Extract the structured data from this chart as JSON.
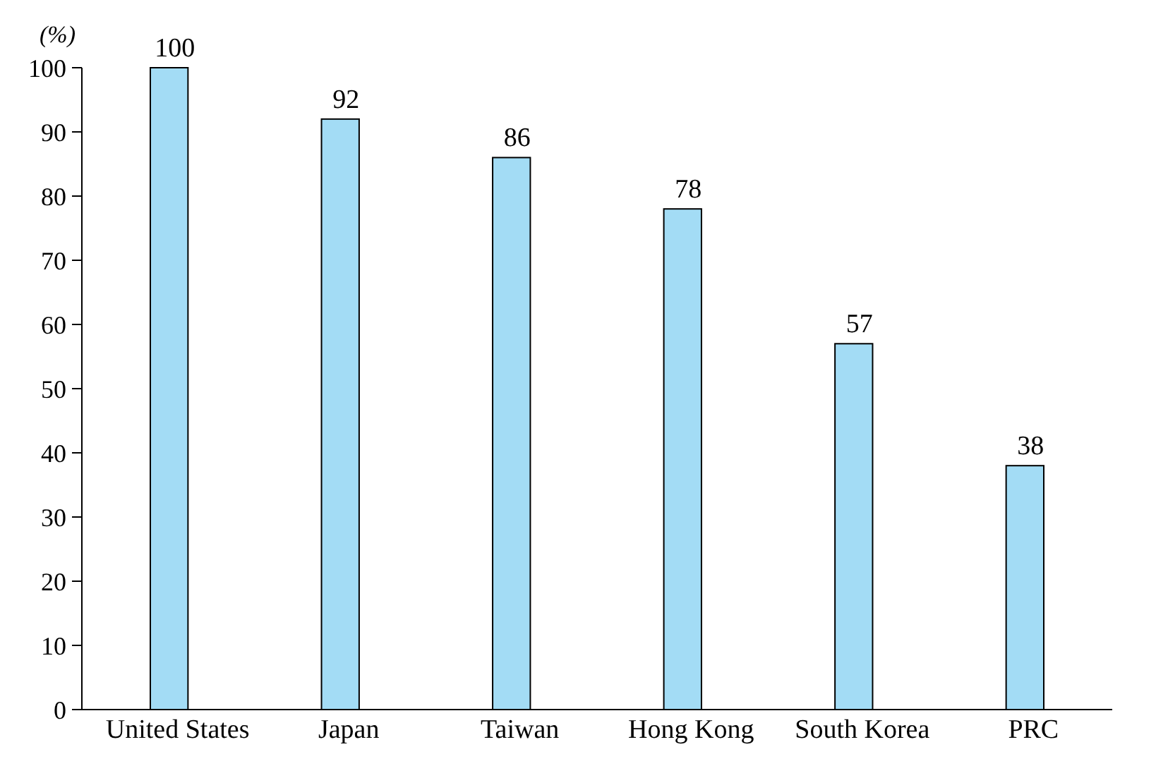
{
  "chart_data": {
    "type": "bar",
    "ylabel": "(%)",
    "categories": [
      "United States",
      "Japan",
      "Taiwan",
      "Hong Kong",
      "South Korea",
      "PRC"
    ],
    "values": [
      100,
      92,
      86,
      78,
      57,
      38
    ],
    "color": "#a3dcf5",
    "ylim": [
      0,
      100
    ],
    "yticks": [
      0,
      10,
      20,
      30,
      40,
      50,
      60,
      70,
      80,
      90,
      100
    ],
    "data_labels": true
  }
}
